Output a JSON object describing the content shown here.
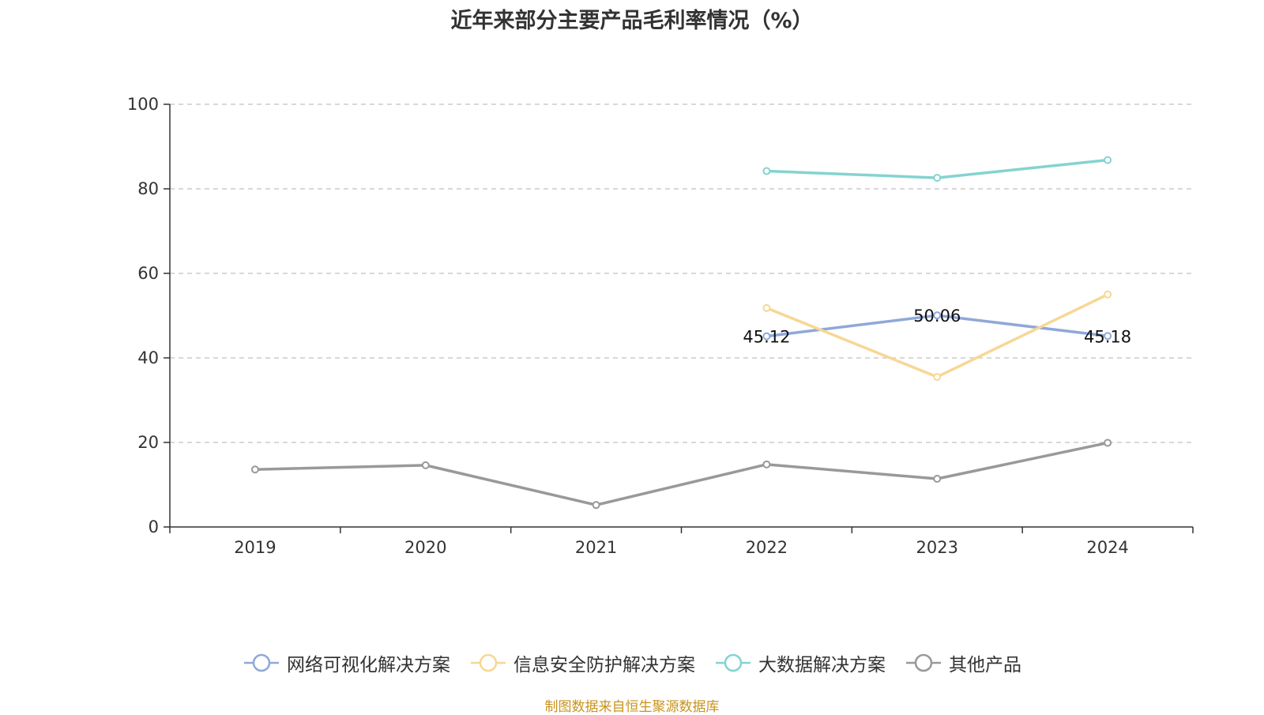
{
  "title": "近年来部分主要产品毛利率情况（%）",
  "source": "制图数据来自恒生聚源数据库",
  "chart_data": {
    "type": "line",
    "categories": [
      "2019",
      "2020",
      "2021",
      "2022",
      "2023",
      "2024"
    ],
    "ylim": [
      0,
      100
    ],
    "yticks": [
      0,
      20,
      40,
      60,
      80,
      100
    ],
    "grid": true,
    "legend_position": "bottom",
    "series": [
      {
        "name": "网络可视化解决方案",
        "color": "#8fa8d8",
        "values": [
          null,
          null,
          null,
          45.12,
          50.06,
          45.18
        ],
        "show_labels": true
      },
      {
        "name": "信息安全防护解决方案",
        "color": "#f7d795",
        "values": [
          null,
          null,
          null,
          51.8,
          35.5,
          55.0
        ],
        "show_labels": false
      },
      {
        "name": "大数据解决方案",
        "color": "#84d3d0",
        "values": [
          null,
          null,
          null,
          84.2,
          82.6,
          86.8
        ],
        "show_labels": false
      },
      {
        "name": "其他产品",
        "color": "#999999",
        "values": [
          13.6,
          14.6,
          5.2,
          14.8,
          11.4,
          19.9
        ],
        "show_labels": false
      }
    ]
  }
}
